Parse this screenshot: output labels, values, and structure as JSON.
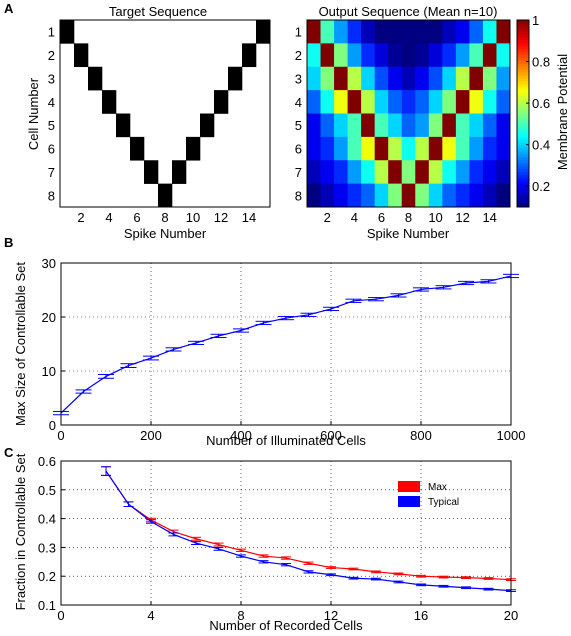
{
  "panel_labels": [
    "A",
    "B",
    "C"
  ],
  "chart_data": [
    {
      "type": "heatmap",
      "panel": "A",
      "title": "Target Sequence",
      "xlabel": "Spike Number",
      "ylabel": "Cell Number",
      "x_range": [
        1,
        15
      ],
      "y_range": [
        1,
        8
      ],
      "x_ticks": [
        2,
        4,
        6,
        8,
        10,
        12,
        14
      ],
      "y_ticks": [
        1,
        2,
        3,
        4,
        5,
        6,
        7,
        8
      ],
      "active_cell_per_spike": [
        1,
        2,
        3,
        4,
        5,
        6,
        7,
        8,
        7,
        6,
        5,
        4,
        3,
        2,
        1
      ],
      "colors": {
        "on": "#000000",
        "off": "#ffffff"
      }
    },
    {
      "type": "heatmap",
      "panel": "A",
      "title": "Output Sequence (Mean n=10)",
      "xlabel": "Spike Number",
      "ylabel": "",
      "x_range": [
        1,
        15
      ],
      "y_range": [
        1,
        8
      ],
      "x_ticks": [
        2,
        4,
        6,
        8,
        10,
        12,
        14
      ],
      "y_ticks": [
        1,
        2,
        3,
        4,
        5,
        6,
        7,
        8
      ],
      "values": [
        [
          1.0,
          0.5,
          0.35,
          0.25,
          0.15,
          0.1,
          0.08,
          0.08,
          0.08,
          0.1,
          0.15,
          0.2,
          0.3,
          0.45,
          1.0
        ],
        [
          0.45,
          1.0,
          0.55,
          0.35,
          0.25,
          0.18,
          0.12,
          0.1,
          0.12,
          0.18,
          0.25,
          0.35,
          0.5,
          1.0,
          0.45
        ],
        [
          0.4,
          0.55,
          1.0,
          0.6,
          0.4,
          0.28,
          0.2,
          0.15,
          0.2,
          0.28,
          0.4,
          0.6,
          1.0,
          0.55,
          0.35
        ],
        [
          0.3,
          0.45,
          0.65,
          1.0,
          0.6,
          0.4,
          0.3,
          0.25,
          0.3,
          0.4,
          0.55,
          1.0,
          0.65,
          0.45,
          0.3
        ],
        [
          0.2,
          0.3,
          0.4,
          0.5,
          1.0,
          0.5,
          0.4,
          0.3,
          0.35,
          0.55,
          1.0,
          0.5,
          0.4,
          0.3,
          0.2
        ],
        [
          0.2,
          0.25,
          0.35,
          0.5,
          0.65,
          1.0,
          0.6,
          0.45,
          0.6,
          1.0,
          0.65,
          0.5,
          0.35,
          0.25,
          0.2
        ],
        [
          0.15,
          0.2,
          0.25,
          0.35,
          0.45,
          0.6,
          1.0,
          0.55,
          1.0,
          0.6,
          0.45,
          0.35,
          0.25,
          0.2,
          0.15
        ],
        [
          0.1,
          0.15,
          0.2,
          0.25,
          0.3,
          0.4,
          0.55,
          1.0,
          0.55,
          0.4,
          0.3,
          0.25,
          0.2,
          0.15,
          0.1
        ]
      ],
      "colorbar": {
        "label": "Membrane Potential",
        "range": [
          0.1,
          1.0
        ],
        "ticks": [
          "0.2",
          "0.4",
          "0.6",
          "0.8",
          "1"
        ],
        "colormap": "jet"
      }
    },
    {
      "type": "line",
      "panel": "B",
      "xlabel": "Number of Illuminated Cells",
      "ylabel": "Max Size of Controllable Set",
      "xlim": [
        0,
        1000
      ],
      "ylim": [
        0,
        30
      ],
      "x_ticks": [
        0,
        200,
        400,
        600,
        800,
        1000
      ],
      "y_ticks": [
        0,
        10,
        20,
        30
      ],
      "grid": true,
      "error_bars": true,
      "series": [
        {
          "color": "#0000ff",
          "x": [
            0,
            50,
            100,
            150,
            200,
            250,
            300,
            350,
            400,
            450,
            500,
            550,
            600,
            650,
            700,
            750,
            800,
            850,
            900,
            950,
            1000
          ],
          "y": [
            2.2,
            6.2,
            9.0,
            11.0,
            12.4,
            14.0,
            15.2,
            16.5,
            17.5,
            18.9,
            19.8,
            20.4,
            21.5,
            23.0,
            23.3,
            24.0,
            25.1,
            25.5,
            26.3,
            26.6,
            27.6
          ],
          "err": [
            0.3,
            0.3,
            0.35,
            0.35,
            0.35,
            0.3,
            0.3,
            0.3,
            0.3,
            0.3,
            0.3,
            0.3,
            0.3,
            0.3,
            0.3,
            0.3,
            0.3,
            0.3,
            0.3,
            0.3,
            0.3
          ]
        }
      ]
    },
    {
      "type": "line",
      "panel": "C",
      "xlabel": "Number of Recorded Cells",
      "ylabel": "Fraction in Controllable Set",
      "xlim": [
        0,
        20
      ],
      "ylim": [
        0.1,
        0.6
      ],
      "x_ticks": [
        0,
        4,
        8,
        12,
        16,
        20
      ],
      "y_ticks": [
        0.1,
        0.2,
        0.3,
        0.4,
        0.5,
        0.6
      ],
      "grid": true,
      "error_bars": true,
      "legend_position": "top-right",
      "series": [
        {
          "name": "Max",
          "color": "#ff0000",
          "x": [
            2,
            3,
            4,
            5,
            6,
            7,
            8,
            9,
            10,
            11,
            12,
            13,
            14,
            15,
            16,
            17,
            18,
            19,
            20
          ],
          "y": [
            0.565,
            0.45,
            0.395,
            0.355,
            0.33,
            0.31,
            0.29,
            0.27,
            0.263,
            0.245,
            0.23,
            0.225,
            0.215,
            0.208,
            0.2,
            0.197,
            0.195,
            0.192,
            0.188
          ],
          "err": [
            0.015,
            0.008,
            0.006,
            0.005,
            0.005,
            0.005,
            0.004,
            0.004,
            0.004,
            0.004,
            0.003,
            0.003,
            0.003,
            0.003,
            0.003,
            0.003,
            0.003,
            0.003,
            0.003
          ]
        },
        {
          "name": "Typical",
          "color": "#0000ff",
          "x": [
            2,
            3,
            4,
            5,
            6,
            7,
            8,
            9,
            10,
            11,
            12,
            13,
            14,
            15,
            16,
            17,
            18,
            19,
            20
          ],
          "y": [
            0.565,
            0.45,
            0.39,
            0.345,
            0.315,
            0.295,
            0.27,
            0.25,
            0.24,
            0.215,
            0.205,
            0.193,
            0.19,
            0.18,
            0.17,
            0.165,
            0.16,
            0.155,
            0.15
          ],
          "err": [
            0.015,
            0.008,
            0.006,
            0.005,
            0.005,
            0.005,
            0.004,
            0.004,
            0.004,
            0.004,
            0.003,
            0.003,
            0.003,
            0.003,
            0.003,
            0.003,
            0.003,
            0.003,
            0.003
          ]
        }
      ]
    }
  ]
}
